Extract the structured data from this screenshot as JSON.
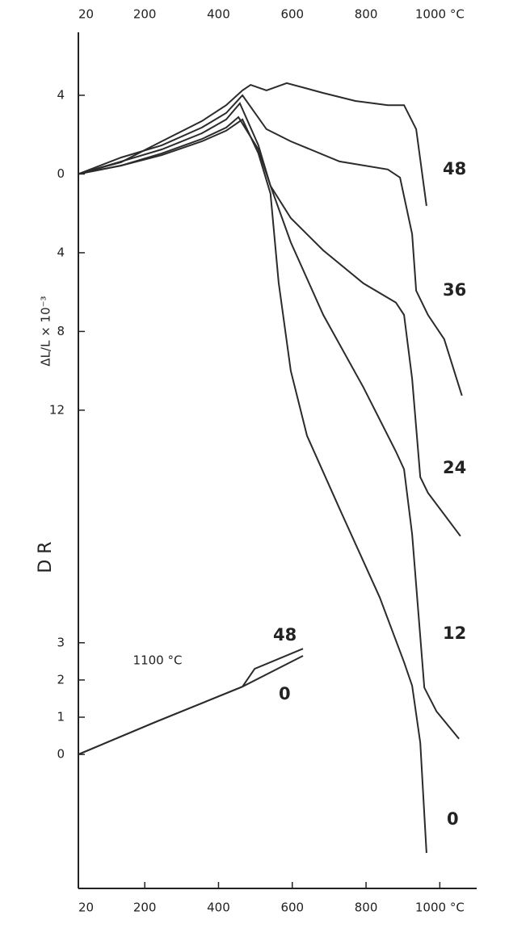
{
  "chart_data": {
    "type": "line",
    "ylabel": "ΔL/L × 10⁻³",
    "y2label": "D R",
    "annotation": "1100 °C",
    "xlim": [
      20,
      1100
    ],
    "xticks": [
      20,
      200,
      400,
      600,
      800,
      {
        "value": 1000,
        "label": "1000 °C"
      }
    ],
    "ylim": [
      -36.3,
      7.2
    ],
    "yticks": [
      4,
      0,
      {
        "value": -4,
        "label": "4"
      },
      {
        "value": -8,
        "label": "8"
      },
      {
        "value": -12,
        "label": "12"
      }
    ],
    "y2lim": [
      -3.6,
      19.4
    ],
    "y2ticks": [
      3,
      2,
      1,
      0
    ],
    "color": "#2b2b2b",
    "series": [
      {
        "name": "48",
        "x": [
          20,
          136,
          246,
          355,
          421,
          465,
          487,
          530,
          585,
          684,
          771,
          859,
          903,
          936,
          964
        ],
        "values": [
          0,
          0.6,
          1.66,
          2.69,
          3.5,
          4.25,
          4.53,
          4.25,
          4.62,
          4.12,
          3.71,
          3.5,
          3.5,
          2.28,
          -1.62
        ]
      },
      {
        "name": "36",
        "x": [
          20,
          136,
          246,
          355,
          421,
          465,
          530,
          596,
          728,
          859,
          892,
          925,
          936,
          968,
          1012,
          1060
        ],
        "values": [
          0,
          0.84,
          1.46,
          2.36,
          3.1,
          4.0,
          2.28,
          1.66,
          0.64,
          0.23,
          -0.18,
          -3.05,
          -5.93,
          -7.16,
          -8.39,
          -11.26
        ]
      },
      {
        "name": "24",
        "x": [
          20,
          136,
          246,
          355,
          421,
          458,
          508,
          541,
          596,
          684,
          793,
          881,
          903,
          925,
          947,
          968,
          1056
        ],
        "values": [
          0,
          0.64,
          1.25,
          2.07,
          2.77,
          3.59,
          1.46,
          -0.6,
          -2.24,
          -3.88,
          -5.56,
          -6.53,
          -7.16,
          -10.4,
          -15.4,
          -16.2,
          -18.4
        ]
      },
      {
        "name": "12",
        "x": [
          20,
          136,
          246,
          355,
          421,
          454,
          508,
          541,
          596,
          684,
          793,
          881,
          903,
          925,
          958,
          991,
          1052
        ],
        "values": [
          0,
          0.43,
          1.05,
          1.78,
          2.36,
          2.89,
          1.25,
          -0.6,
          -3.47,
          -7.16,
          -10.85,
          -14.1,
          -15.0,
          -18.3,
          -26.1,
          -27.3,
          -28.7
        ]
      },
      {
        "name": "0",
        "x": [
          20,
          136,
          246,
          355,
          421,
          465,
          508,
          541,
          563,
          596,
          640,
          728,
          837,
          903,
          925,
          947,
          964
        ],
        "values": [
          0,
          0.43,
          0.96,
          1.66,
          2.2,
          2.77,
          1.05,
          -1.0,
          -5.52,
          -10.0,
          -13.3,
          -17.0,
          -21.5,
          -24.8,
          -26.0,
          -28.9,
          -34.5
        ]
      },
      {
        "name": "48",
        "axis": "y2",
        "x": [
          20,
          224,
          465,
          498,
          629
        ],
        "values": [
          0,
          0.85,
          1.82,
          2.3,
          2.84
        ]
      },
      {
        "name": "0",
        "axis": "y2",
        "x": [
          20,
          224,
          465,
          629
        ],
        "values": [
          0,
          0.85,
          1.82,
          2.65
        ]
      }
    ]
  }
}
